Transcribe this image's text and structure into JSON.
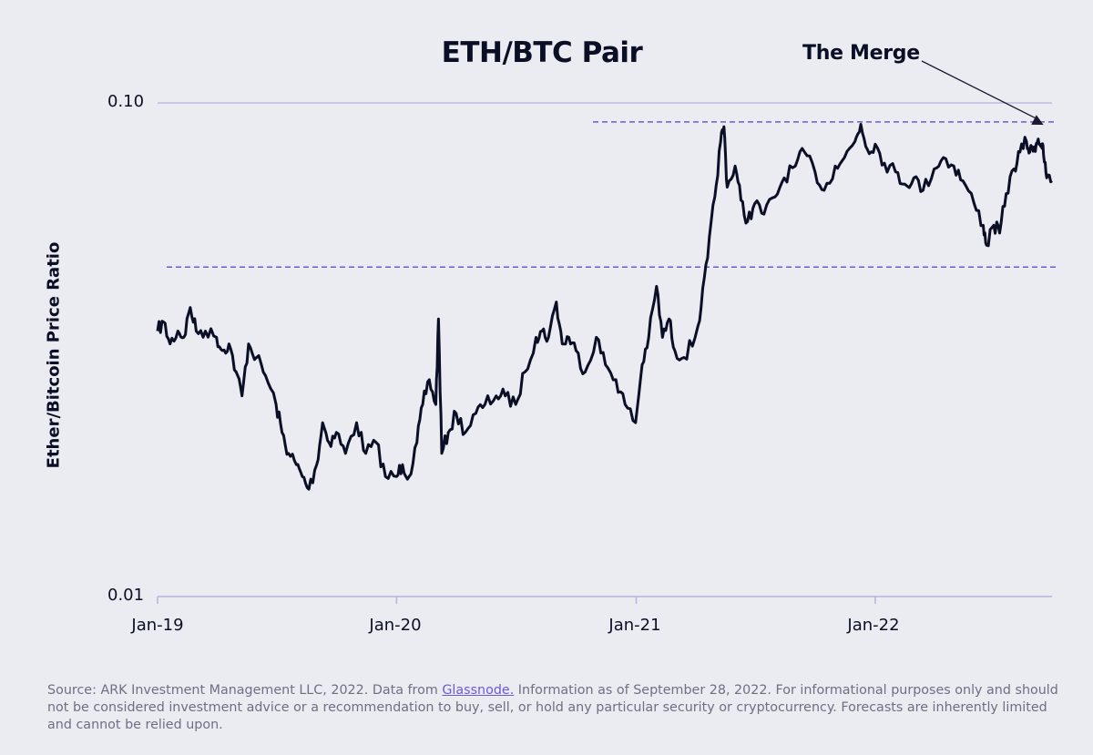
{
  "chart_data": {
    "type": "line",
    "title": "ETH/BTC Pair",
    "ylabel": "Ether/Bitcoin Price Ratio",
    "xlabel": "",
    "yscale": "log",
    "ylim": [
      0.01,
      0.1
    ],
    "yticks": [
      "0.10",
      "0.01"
    ],
    "xticks": [
      "Jan-19",
      "Jan-20",
      "Jan-21",
      "Jan-22"
    ],
    "xlim": [
      "2019-01-01",
      "2022-09-28"
    ],
    "grid": "horizontal",
    "reference_lines": [
      0.0915,
      0.0465
    ],
    "annotations": [
      {
        "text": "The Merge",
        "x": "2022-09-15",
        "y": 0.088
      }
    ],
    "series": [
      {
        "values": [
          [
            "2019-01-01",
            0.0345
          ],
          [
            "2019-01-10",
            0.036
          ],
          [
            "2019-01-20",
            0.0325
          ],
          [
            "2019-02-01",
            0.0345
          ],
          [
            "2019-02-10",
            0.0335
          ],
          [
            "2019-02-20",
            0.0385
          ],
          [
            "2019-03-01",
            0.0345
          ],
          [
            "2019-03-15",
            0.0345
          ],
          [
            "2019-04-01",
            0.0335
          ],
          [
            "2019-04-10",
            0.0315
          ],
          [
            "2019-04-20",
            0.0325
          ],
          [
            "2019-05-01",
            0.0285
          ],
          [
            "2019-05-10",
            0.0255
          ],
          [
            "2019-05-20",
            0.0325
          ],
          [
            "2019-06-01",
            0.0305
          ],
          [
            "2019-06-15",
            0.028
          ],
          [
            "2019-07-01",
            0.0245
          ],
          [
            "2019-07-10",
            0.0215
          ],
          [
            "2019-07-20",
            0.0195
          ],
          [
            "2019-08-01",
            0.0185
          ],
          [
            "2019-08-10",
            0.0175
          ],
          [
            "2019-08-20",
            0.0165
          ],
          [
            "2019-09-01",
            0.0185
          ],
          [
            "2019-09-10",
            0.0225
          ],
          [
            "2019-09-20",
            0.0205
          ],
          [
            "2019-10-01",
            0.0215
          ],
          [
            "2019-10-15",
            0.0195
          ],
          [
            "2019-11-01",
            0.0225
          ],
          [
            "2019-11-15",
            0.0195
          ],
          [
            "2019-12-01",
            0.0205
          ],
          [
            "2019-12-15",
            0.0175
          ],
          [
            "2020-01-01",
            0.0175
          ],
          [
            "2020-01-10",
            0.0185
          ],
          [
            "2020-01-20",
            0.0175
          ],
          [
            "2020-02-01",
            0.0205
          ],
          [
            "2020-02-10",
            0.0245
          ],
          [
            "2020-02-20",
            0.0275
          ],
          [
            "2020-03-01",
            0.0245
          ],
          [
            "2020-03-05",
            0.0365
          ],
          [
            "2020-03-10",
            0.0195
          ],
          [
            "2020-03-20",
            0.0215
          ],
          [
            "2020-04-01",
            0.0235
          ],
          [
            "2020-04-15",
            0.0215
          ],
          [
            "2020-05-01",
            0.0235
          ],
          [
            "2020-05-15",
            0.0245
          ],
          [
            "2020-06-01",
            0.0255
          ],
          [
            "2020-06-15",
            0.0255
          ],
          [
            "2020-07-01",
            0.0245
          ],
          [
            "2020-07-15",
            0.0285
          ],
          [
            "2020-08-01",
            0.0335
          ],
          [
            "2020-08-10",
            0.0345
          ],
          [
            "2020-08-20",
            0.0335
          ],
          [
            "2020-09-01",
            0.0395
          ],
          [
            "2020-09-10",
            0.0325
          ],
          [
            "2020-09-20",
            0.0335
          ],
          [
            "2020-10-01",
            0.0315
          ],
          [
            "2020-10-15",
            0.0285
          ],
          [
            "2020-11-01",
            0.0335
          ],
          [
            "2020-11-15",
            0.0295
          ],
          [
            "2020-12-01",
            0.0275
          ],
          [
            "2020-12-15",
            0.0245
          ],
          [
            "2020-12-31",
            0.0225
          ],
          [
            "2021-01-10",
            0.0295
          ],
          [
            "2021-01-20",
            0.0335
          ],
          [
            "2021-02-01",
            0.0425
          ],
          [
            "2021-02-10",
            0.0335
          ],
          [
            "2021-02-20",
            0.0365
          ],
          [
            "2021-03-01",
            0.0315
          ],
          [
            "2021-03-15",
            0.0305
          ],
          [
            "2021-04-01",
            0.0335
          ],
          [
            "2021-04-10",
            0.0385
          ],
          [
            "2021-04-20",
            0.0485
          ],
          [
            "2021-05-01",
            0.0645
          ],
          [
            "2021-05-10",
            0.0835
          ],
          [
            "2021-05-15",
            0.0895
          ],
          [
            "2021-05-20",
            0.0675
          ],
          [
            "2021-06-01",
            0.0745
          ],
          [
            "2021-06-10",
            0.0635
          ],
          [
            "2021-06-20",
            0.0575
          ],
          [
            "2021-07-01",
            0.0625
          ],
          [
            "2021-07-15",
            0.0595
          ],
          [
            "2021-08-01",
            0.0645
          ],
          [
            "2021-08-15",
            0.0705
          ],
          [
            "2021-09-01",
            0.0745
          ],
          [
            "2021-09-15",
            0.0795
          ],
          [
            "2021-10-01",
            0.0725
          ],
          [
            "2021-10-15",
            0.0665
          ],
          [
            "2021-11-01",
            0.0745
          ],
          [
            "2021-11-15",
            0.0775
          ],
          [
            "2021-12-01",
            0.0835
          ],
          [
            "2021-12-10",
            0.0905
          ],
          [
            "2021-12-20",
            0.0805
          ],
          [
            "2022-01-01",
            0.0825
          ],
          [
            "2022-01-15",
            0.0755
          ],
          [
            "2022-02-01",
            0.0725
          ],
          [
            "2022-02-15",
            0.0685
          ],
          [
            "2022-03-01",
            0.0705
          ],
          [
            "2022-03-15",
            0.0665
          ],
          [
            "2022-04-01",
            0.0735
          ],
          [
            "2022-04-15",
            0.0775
          ],
          [
            "2022-05-01",
            0.0745
          ],
          [
            "2022-05-15",
            0.0695
          ],
          [
            "2022-06-01",
            0.0625
          ],
          [
            "2022-06-15",
            0.0565
          ],
          [
            "2022-06-20",
            0.0515
          ],
          [
            "2022-07-01",
            0.0565
          ],
          [
            "2022-07-10",
            0.0545
          ],
          [
            "2022-07-20",
            0.0655
          ],
          [
            "2022-08-01",
            0.0735
          ],
          [
            "2022-08-10",
            0.0795
          ],
          [
            "2022-08-20",
            0.0835
          ],
          [
            "2022-08-25",
            0.0795
          ],
          [
            "2022-09-01",
            0.0815
          ],
          [
            "2022-09-07",
            0.0845
          ],
          [
            "2022-09-12",
            0.0825
          ],
          [
            "2022-09-15",
            0.0785
          ],
          [
            "2022-09-20",
            0.0705
          ],
          [
            "2022-09-28",
            0.0695
          ]
        ]
      }
    ]
  },
  "footer": {
    "text_before": "Source: ARK Investment Management LLC, 2022. Data from ",
    "link_text": "Glassnode.",
    "text_after": " Information as of September 28, 2022. For informational purposes only and should not be considered investment advice or a recommendation to buy, sell, or hold any particular security or cryptocurrency. Forecasts are inherently limited and cannot be relied upon."
  },
  "colors": {
    "background": "#ebebf2",
    "line": "#0b0f26",
    "reference_line": "#6b5bd6",
    "gridline": "#b5b3e0"
  }
}
